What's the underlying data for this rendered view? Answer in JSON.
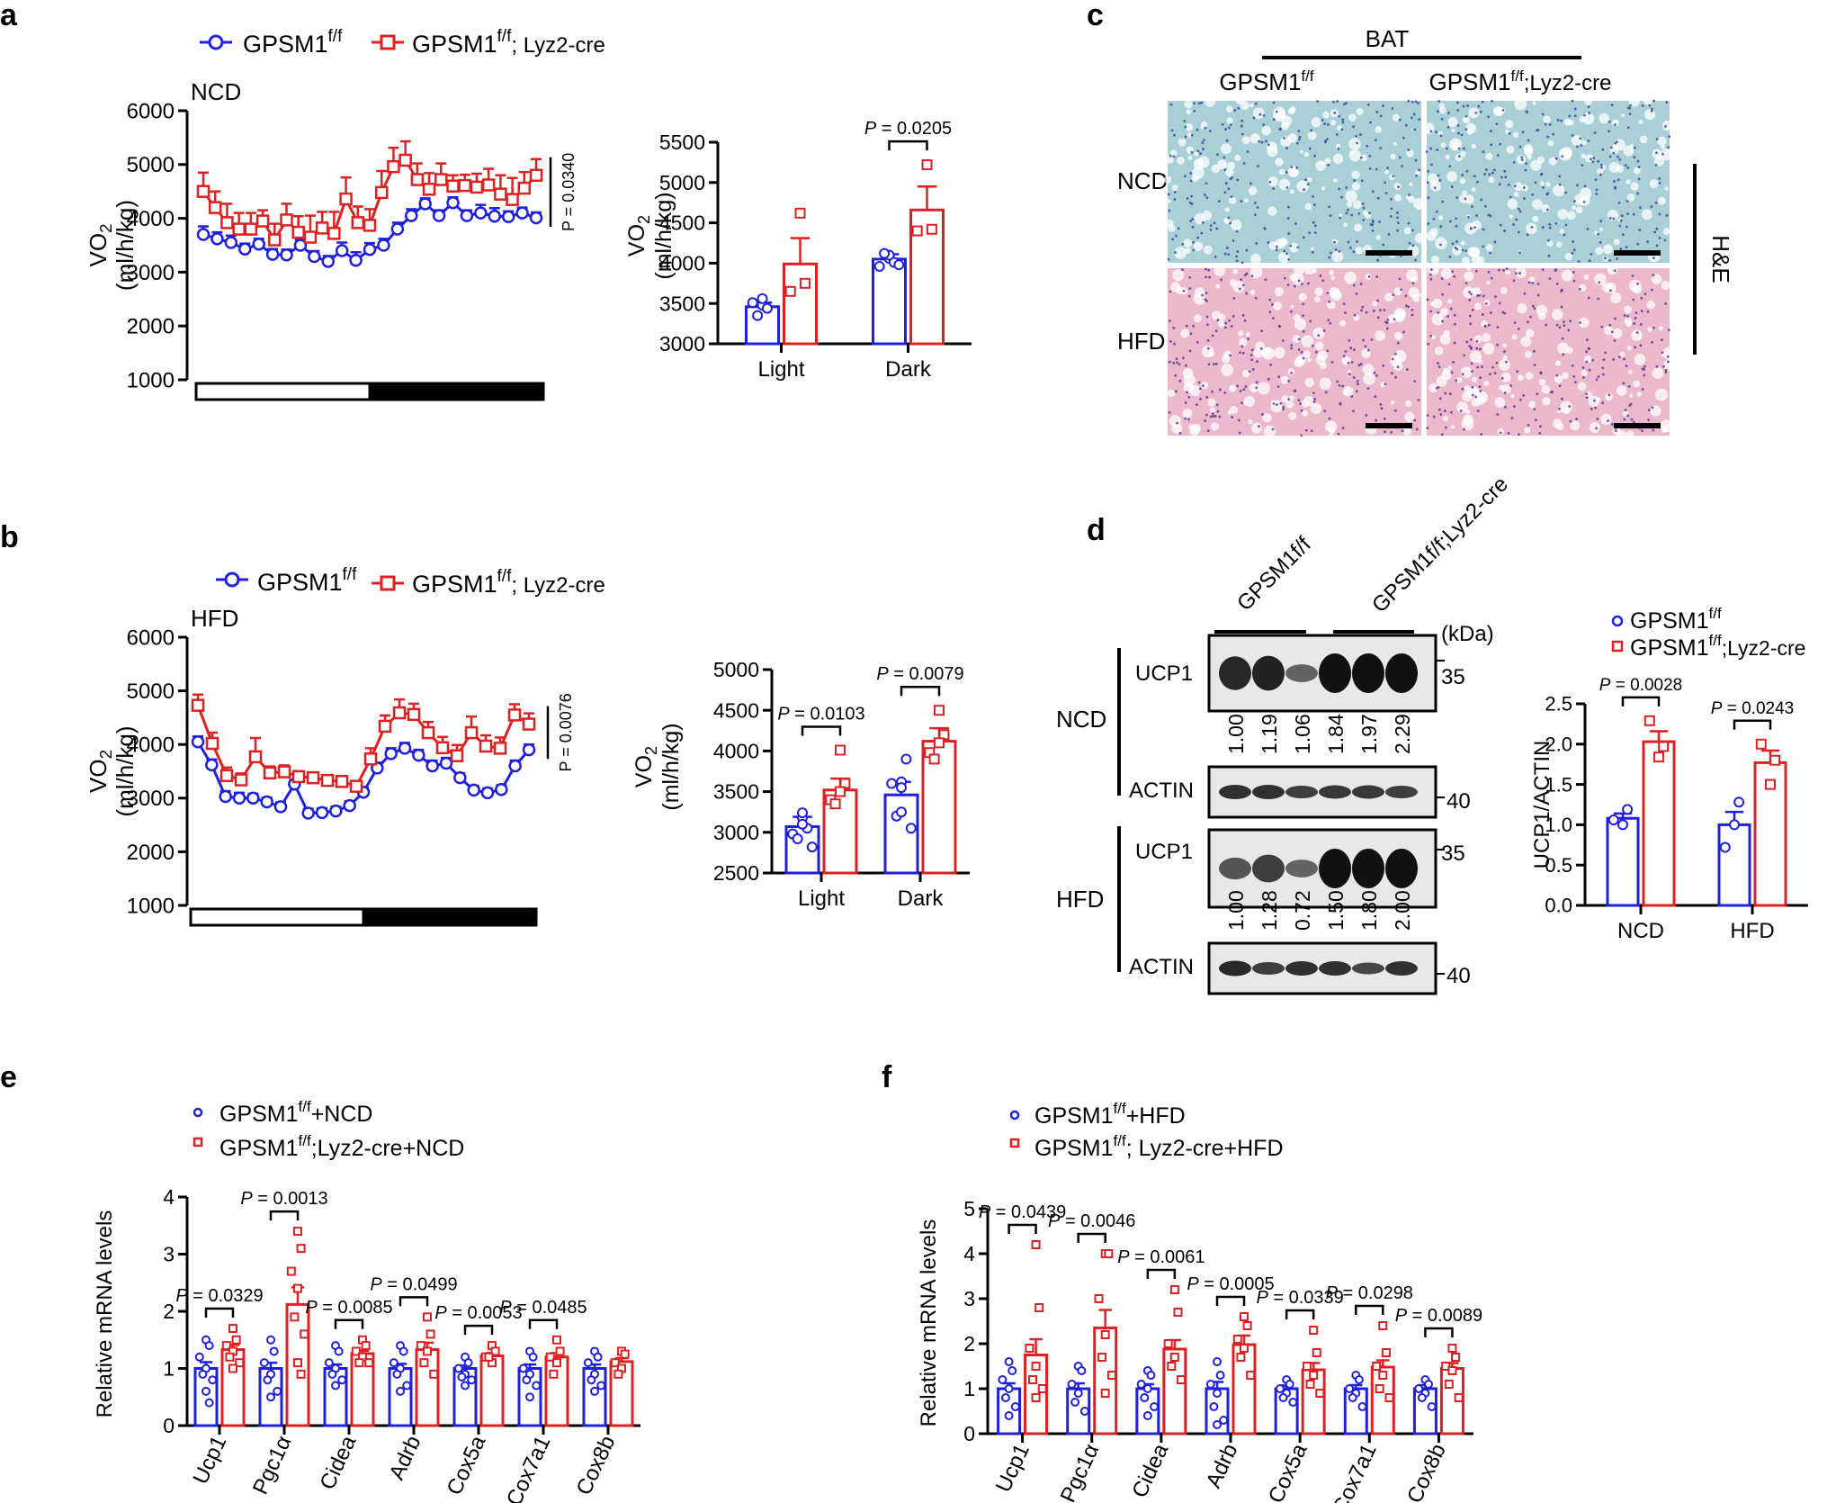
{
  "colors": {
    "blue": "#1f1fe0",
    "red": "#e02020",
    "black": "#000000",
    "he_ncd_bg": "#a9d0d6",
    "he_ncd_dot": "#3a4a9a",
    "he_hfd_bg": "#ecb8cb",
    "he_hfd_dot": "#5a3a90",
    "blot_bg": "#e8e8e8",
    "band": "#111111"
  },
  "panels": {
    "a": {
      "label": "a"
    },
    "b": {
      "label": "b"
    },
    "c": {
      "label": "c"
    },
    "d": {
      "label": "d"
    },
    "e": {
      "label": "e"
    },
    "f": {
      "label": "f"
    }
  },
  "legend_ab": {
    "ff": {
      "base": "GPSM1",
      "sup": "f/f"
    },
    "cre": {
      "base": "GPSM1",
      "sup": "f/f",
      "suffix": "; Lyz2-cre"
    },
    "cre_b": {
      "base": "GPSM1",
      "sup": "f/f",
      "suffix": "; Lyz2-cre"
    }
  },
  "panel_c": {
    "header": "BAT",
    "col1": {
      "base": "GPSM1",
      "sup": "f/f"
    },
    "col2": {
      "base": "GPSM1",
      "sup": "f/f",
      "suffix": ";Lyz2-cre"
    },
    "rows": [
      "NCD",
      "HFD"
    ],
    "stain": "H&E"
  },
  "panel_d": {
    "col1": "GPSM1f/f",
    "col2": "GPSM1f/f;Lyz2-cre",
    "kda": "(kDa)",
    "ncd": "NCD",
    "hfd": "HFD",
    "ucp1": "UCP1",
    "actin": "ACTIN",
    "mw35": "35",
    "mw40": "40",
    "ncd_ratios": [
      "1.00",
      "1.19",
      "1.06",
      "1.84",
      "1.97",
      "2.29"
    ],
    "hfd_ratios": [
      "1.00",
      "1.28",
      "0.72",
      "1.50",
      "1.80",
      "2.00"
    ],
    "ncd_ucp1_intensity": [
      0.85,
      0.88,
      0.45,
      1.0,
      1.0,
      1.0
    ],
    "hfd_ucp1_intensity": [
      0.55,
      0.7,
      0.45,
      1.0,
      1.0,
      1.0
    ]
  },
  "legend_d": {
    "ff": {
      "base": "GPSM1",
      "sup": "f/f"
    },
    "cre": {
      "base": "GPSM1",
      "sup": "f/f",
      "suffix": ";Lyz2-cre"
    }
  },
  "legend_e": {
    "ff": {
      "base": "GPSM1",
      "sup": "f/f",
      "suffix": "+NCD"
    },
    "cre": {
      "base": "GPSM1",
      "sup": "f/f",
      "suffix": ";Lyz2-cre+NCD"
    }
  },
  "legend_f": {
    "ff": {
      "base": "GPSM1",
      "sup": "f/f",
      "suffix": "+HFD"
    },
    "cre": {
      "base": "GPSM1",
      "sup": "f/f",
      "suffix": "; Lyz2-cre+HFD"
    }
  },
  "chart_data": [
    {
      "id": "a-line",
      "type": "line",
      "condition": "NCD",
      "ylabel": "VO2 (ml/h/kg)",
      "ylim": [
        1000,
        6000
      ],
      "yticks": [
        1000,
        2000,
        3000,
        4000,
        5000,
        6000
      ],
      "pvalue": "P = 0.0340",
      "series": [
        {
          "name": "GPSM1f/f",
          "values": [
            3700,
            3620,
            3550,
            3430,
            3520,
            3330,
            3320,
            3500,
            3290,
            3200,
            3400,
            3220,
            3420,
            3500,
            3800,
            4050,
            4270,
            4050,
            4290,
            4050,
            4100,
            4040,
            4030,
            4100,
            4010
          ],
          "sem": [
            150,
            120,
            130,
            100,
            100,
            100,
            100,
            100,
            100,
            100,
            150,
            150,
            120,
            120,
            120,
            120,
            100,
            100,
            100,
            100,
            150,
            150,
            100,
            100,
            100
          ]
        },
        {
          "name": "GPSM1f/f; Lyz2-cre",
          "values": [
            4500,
            4200,
            3920,
            3800,
            3800,
            3950,
            3600,
            3970,
            3740,
            3650,
            3820,
            3720,
            4360,
            3920,
            3870,
            4480,
            4960,
            5080,
            4720,
            4540,
            4720,
            4600,
            4610,
            4580,
            4620,
            4450,
            4350,
            4560,
            4800
          ],
          "sem": [
            350,
            300,
            350,
            300,
            300,
            200,
            300,
            300,
            300,
            400,
            300,
            400,
            400,
            300,
            300,
            400,
            350,
            350,
            300,
            300,
            300,
            200,
            200,
            250,
            300,
            350,
            400,
            300,
            300
          ]
        }
      ]
    },
    {
      "id": "a-bar",
      "type": "bar",
      "categories": [
        "Light",
        "Dark"
      ],
      "ylabel": "VO2 (ml/h/kg)",
      "ylim": [
        3000,
        5500
      ],
      "yticks": [
        3000,
        3500,
        4000,
        4500,
        5000,
        5500
      ],
      "series": [
        {
          "name": "GPSM1f/f",
          "values": [
            3460,
            4050
          ],
          "sem": [
            50,
            60
          ],
          "points": [
            [
              3480,
              3440,
              3510,
              3560,
              3350
            ],
            [
              4060,
              4010,
              3960,
              4100,
              4120,
              3980
            ]
          ]
        },
        {
          "name": "GPSM1f/f; Lyz2-cre",
          "values": [
            3990,
            4660
          ],
          "sem": [
            320,
            290
          ],
          "points": [
            [
              4620,
              3750,
              3650
            ],
            [
              5220,
              4420,
              4400
            ]
          ]
        }
      ],
      "comparisons": [
        {
          "category": "Dark",
          "p": "P = 0.0205"
        }
      ]
    },
    {
      "id": "b-line",
      "type": "line",
      "condition": "HFD",
      "ylabel": "VO2 (ml/h/kg)",
      "ylim": [
        1000,
        6000
      ],
      "yticks": [
        1000,
        2000,
        3000,
        4000,
        5000,
        6000
      ],
      "pvalue": "P = 0.0076",
      "series": [
        {
          "name": "GPSM1f/f",
          "values": [
            4050,
            3620,
            3030,
            3000,
            3000,
            2930,
            2840,
            3260,
            2720,
            2730,
            2760,
            2860,
            3110,
            3560,
            3830,
            3930,
            3800,
            3600,
            3650,
            3380,
            3150,
            3100,
            3160,
            3600,
            3900
          ],
          "sem": [
            100,
            100,
            100,
            100,
            80,
            80,
            80,
            80,
            80,
            80,
            80,
            80,
            80,
            100,
            100,
            100,
            100,
            100,
            100,
            80,
            80,
            80,
            80,
            100,
            100
          ]
        },
        {
          "name": "GPSM1f/f; Lyz2-cre",
          "values": [
            4730,
            4020,
            3420,
            3340,
            3770,
            3470,
            3490,
            3400,
            3380,
            3330,
            3310,
            3220,
            3730,
            4340,
            4590,
            4560,
            4220,
            3940,
            3790,
            4220,
            3970,
            3930,
            4550,
            4380
          ],
          "sem": [
            200,
            200,
            150,
            120,
            350,
            120,
            120,
            100,
            100,
            100,
            100,
            100,
            200,
            200,
            250,
            200,
            200,
            200,
            200,
            300,
            200,
            200,
            200,
            200
          ]
        }
      ]
    },
    {
      "id": "b-bar",
      "type": "bar",
      "categories": [
        "Light",
        "Dark"
      ],
      "ylabel": "VO2 (ml/h/kg)",
      "ylim": [
        2500,
        5000
      ],
      "yticks": [
        2500,
        3000,
        3500,
        4000,
        4500,
        5000
      ],
      "series": [
        {
          "name": "GPSM1f/f",
          "values": [
            3070,
            3460
          ],
          "sem": [
            120,
            160
          ],
          "points": [
            [
              3180,
              3050,
              2980,
              3100,
              2920,
              2820,
              3240
            ],
            [
              3620,
              3900,
              3600,
              3550,
              3200,
              3050,
              3250
            ]
          ]
        },
        {
          "name": "GPSM1f/f; Lyz2-cre",
          "values": [
            3520,
            4120
          ],
          "sem": [
            140,
            160
          ],
          "points": [
            [
              4010,
              3600,
              3400,
              3500,
              3350
            ],
            [
              4500,
              4200,
              3980,
              4100,
              3900
            ]
          ]
        }
      ],
      "comparisons": [
        {
          "category": "Light",
          "p": "P = 0.0103"
        },
        {
          "category": "Dark",
          "p": "P = 0.0079"
        }
      ]
    },
    {
      "id": "d-bar",
      "type": "bar",
      "categories": [
        "NCD",
        "HFD"
      ],
      "ylabel": "UCP1/ACTIN",
      "ylim": [
        0,
        2.5
      ],
      "yticks": [
        0.0,
        0.5,
        1.0,
        1.5,
        2.0,
        2.5
      ],
      "series": [
        {
          "name": "GPSM1f/f",
          "values": [
            1.08,
            1.0
          ],
          "sem": [
            0.06,
            0.16
          ],
          "points": [
            [
              1.0,
              1.19,
              1.06
            ],
            [
              1.0,
              1.28,
              0.72
            ]
          ]
        },
        {
          "name": "GPSM1f/f;Lyz2-cre",
          "values": [
            2.03,
            1.77
          ],
          "sem": [
            0.13,
            0.15
          ],
          "points": [
            [
              1.84,
              1.97,
              2.29
            ],
            [
              1.5,
              1.8,
              2.0
            ]
          ]
        }
      ],
      "comparisons": [
        {
          "category": "NCD",
          "p": "P = 0.0028"
        },
        {
          "category": "HFD",
          "p": "P = 0.0243"
        }
      ]
    },
    {
      "id": "e-bar",
      "type": "bar",
      "categories": [
        "Ucp1",
        "Pgc1α",
        "Cidea",
        "Adrb",
        "Cox5a",
        "Cox7a1",
        "Cox8b"
      ],
      "ylabel": "Relative mRNA levels",
      "ylim": [
        0,
        4
      ],
      "yticks": [
        0,
        1,
        2,
        3,
        4
      ],
      "series": [
        {
          "name": "GPSM1f/f+NCD",
          "values": [
            1.0,
            1.0,
            1.0,
            1.0,
            1.0,
            1.0,
            1.0
          ],
          "sem": [
            0.11,
            0.1,
            0.07,
            0.08,
            0.05,
            0.07,
            0.07
          ],
          "points": [
            [
              1.5,
              1.4,
              1.2,
              1.0,
              0.9,
              0.8,
              0.6,
              0.4
            ],
            [
              1.5,
              1.3,
              1.1,
              0.9,
              0.8,
              0.6,
              0.5
            ],
            [
              1.4,
              1.3,
              1.1,
              1.0,
              0.9,
              0.8,
              0.7
            ],
            [
              1.4,
              1.3,
              1.1,
              1.0,
              0.9,
              0.7,
              0.6
            ],
            [
              1.2,
              1.1,
              1.0,
              0.9,
              0.85,
              0.8,
              0.7
            ],
            [
              1.3,
              1.2,
              1.0,
              0.9,
              0.8,
              0.7,
              0.5
            ],
            [
              1.3,
              1.2,
              1.1,
              0.9,
              0.8,
              0.7,
              0.6
            ]
          ]
        },
        {
          "name": "GPSM1f/f;Lyz2-cre+NCD",
          "values": [
            1.33,
            2.12,
            1.26,
            1.33,
            1.22,
            1.2,
            1.12
          ],
          "sem": [
            0.08,
            0.3,
            0.05,
            0.12,
            0.05,
            0.07,
            0.06
          ],
          "points": [
            [
              1.7,
              1.5,
              1.4,
              1.3,
              1.2,
              1.1,
              1.0
            ],
            [
              3.4,
              3.1,
              2.7,
              2.4,
              1.9,
              1.6,
              1.1,
              0.9
            ],
            [
              1.5,
              1.4,
              1.3,
              1.2,
              1.1,
              1.1
            ],
            [
              1.9,
              1.6,
              1.4,
              1.3,
              1.1,
              0.9
            ],
            [
              1.4,
              1.3,
              1.2,
              1.1,
              1.2
            ],
            [
              1.5,
              1.3,
              1.2,
              1.1,
              0.9
            ],
            [
              1.3,
              1.25,
              1.1,
              1.0,
              0.9
            ]
          ]
        }
      ],
      "comparisons": [
        {
          "category": "Ucp1",
          "p": "P = 0.0329"
        },
        {
          "category": "Pgc1α",
          "p": "P = 0.0013"
        },
        {
          "category": "Cidea",
          "p": "P = 0.0085"
        },
        {
          "category": "Adrb",
          "p": "P = 0.0499"
        },
        {
          "category": "Cox5a",
          "p": "P = 0.0053"
        },
        {
          "category": "Cox7a1",
          "p": "P = 0.0485"
        }
      ]
    },
    {
      "id": "f-bar",
      "type": "bar",
      "categories": [
        "Ucp1",
        "Pgc1α",
        "Cidea",
        "Adrb",
        "Cox5a",
        "Cox7a1",
        "Cox8b"
      ],
      "ylabel": "Relative mRNA levels",
      "ylim": [
        0,
        5
      ],
      "yticks": [
        0,
        1,
        2,
        3,
        4,
        5
      ],
      "series": [
        {
          "name": "GPSM1f/f+HFD",
          "values": [
            1.0,
            1.0,
            1.0,
            1.0,
            1.0,
            1.0,
            1.0
          ],
          "sem": [
            0.12,
            0.12,
            0.1,
            0.15,
            0.07,
            0.08,
            0.08
          ],
          "points": [
            [
              1.6,
              1.4,
              1.2,
              1.0,
              0.8,
              0.6,
              0.4
            ],
            [
              1.5,
              1.4,
              1.1,
              0.9,
              0.7,
              0.5
            ],
            [
              1.4,
              1.3,
              1.1,
              1.0,
              0.8,
              0.6,
              0.4
            ],
            [
              1.6,
              1.3,
              1.1,
              0.9,
              0.6,
              0.3,
              0.2
            ],
            [
              1.2,
              1.1,
              1.0,
              0.9,
              0.8,
              0.7
            ],
            [
              1.3,
              1.2,
              1.0,
              0.9,
              0.8,
              0.6
            ],
            [
              1.2,
              1.1,
              1.0,
              0.9,
              0.8,
              0.6
            ]
          ]
        },
        {
          "name": "GPSM1f/f; Lyz2-cre+HFD",
          "values": [
            1.75,
            2.35,
            1.88,
            1.98,
            1.42,
            1.48,
            1.45
          ],
          "sem": [
            0.35,
            0.4,
            0.2,
            0.2,
            0.15,
            0.15,
            0.12
          ],
          "points": [
            [
              4.2,
              2.8,
              1.9,
              1.5,
              1.2,
              1.0,
              0.8
            ],
            [
              4.0,
              4.0,
              3.0,
              2.2,
              1.7,
              1.3,
              0.9
            ],
            [
              3.2,
              2.7,
              2.0,
              1.7,
              1.5,
              1.2
            ],
            [
              2.6,
              2.4,
              2.1,
              1.9,
              1.7,
              1.3
            ],
            [
              2.3,
              1.8,
              1.5,
              1.3,
              1.1,
              0.9
            ],
            [
              2.4,
              1.8,
              1.5,
              1.3,
              1.0,
              0.8
            ],
            [
              1.9,
              1.7,
              1.5,
              1.4,
              1.1,
              0.8
            ]
          ]
        }
      ],
      "comparisons": [
        {
          "category": "Ucp1",
          "p": "P = 0.0439"
        },
        {
          "category": "Pgc1α",
          "p": "P = 0.0046"
        },
        {
          "category": "Cidea",
          "p": "P = 0.0061"
        },
        {
          "category": "Adrb",
          "p": "P = 0.0005"
        },
        {
          "category": "Cox5a",
          "p": "P = 0.0339"
        },
        {
          "category": "Cox7a1",
          "p": "P = 0.0298"
        },
        {
          "category": "Cox8b",
          "p": "P = 0.0089"
        }
      ]
    }
  ]
}
